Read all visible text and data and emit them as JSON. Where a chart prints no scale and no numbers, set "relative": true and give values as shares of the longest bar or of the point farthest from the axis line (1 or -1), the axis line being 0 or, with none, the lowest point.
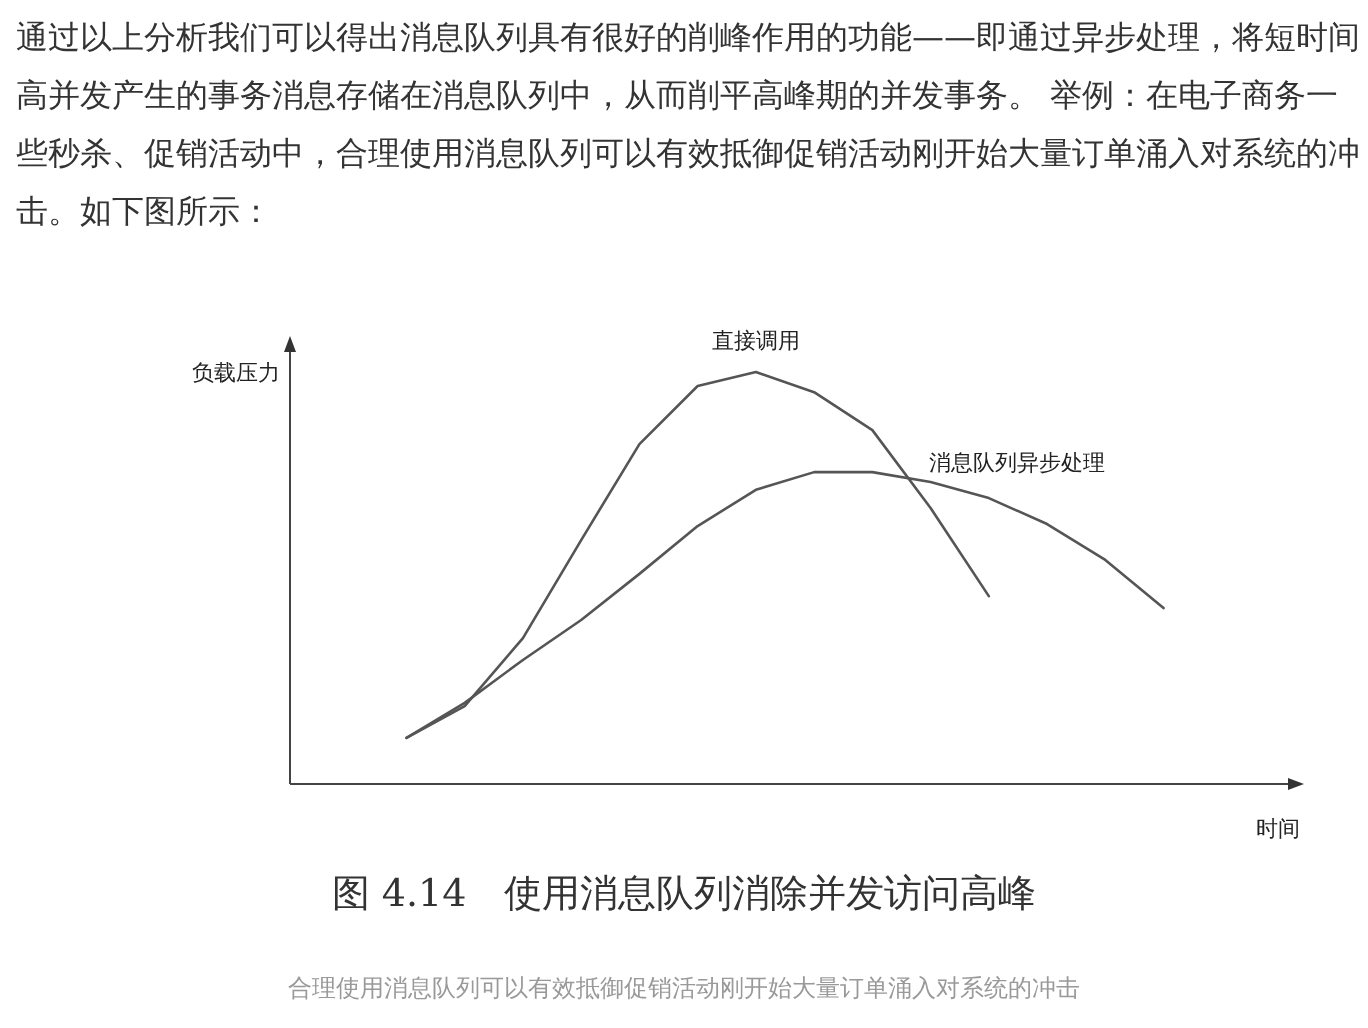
{
  "chart_data": {
    "type": "line",
    "relative": true,
    "xlabel": "时间",
    "ylabel": "负载压力",
    "line_style": "solid",
    "categories": [
      null,
      null,
      null,
      null,
      null,
      null,
      null,
      null,
      null,
      null,
      null,
      null,
      null,
      null
    ],
    "series": [
      {
        "name": "直接调用",
        "color": "#555555",
        "values": [
          0.112,
          0.189,
          0.354,
          0.592,
          0.825,
          0.966,
          1,
          0.951,
          0.859,
          0.67,
          0.456,
          null,
          null,
          null
        ]
      },
      {
        "name": "消息队列异步处理",
        "color": "#555555",
        "values": [
          0.112,
          0.197,
          0.301,
          0.398,
          0.51,
          0.626,
          0.714,
          0.757,
          0.757,
          0.733,
          0.694,
          0.631,
          0.544,
          0.427
        ]
      }
    ],
    "annotations": [
      "通过以上分析我们可以得出消息队列具有很好的削峰作用的功能——即通过异步处理，将短时间高并发产生的事务消息存储在消息队列中，从而削平高峰期的并发事务。 举例：在电子商务一些秒杀、促销活动中，合理使用消息队列可以有效抵御促销活动刚开始大量订单涌入对系统的冲击。如下图所示：",
      "图 4.14　使用消息队列消除并发访问高峰",
      "合理使用消息队列可以有效抵御促销活动刚开始大量订单涌入对系统的冲击"
    ]
  }
}
